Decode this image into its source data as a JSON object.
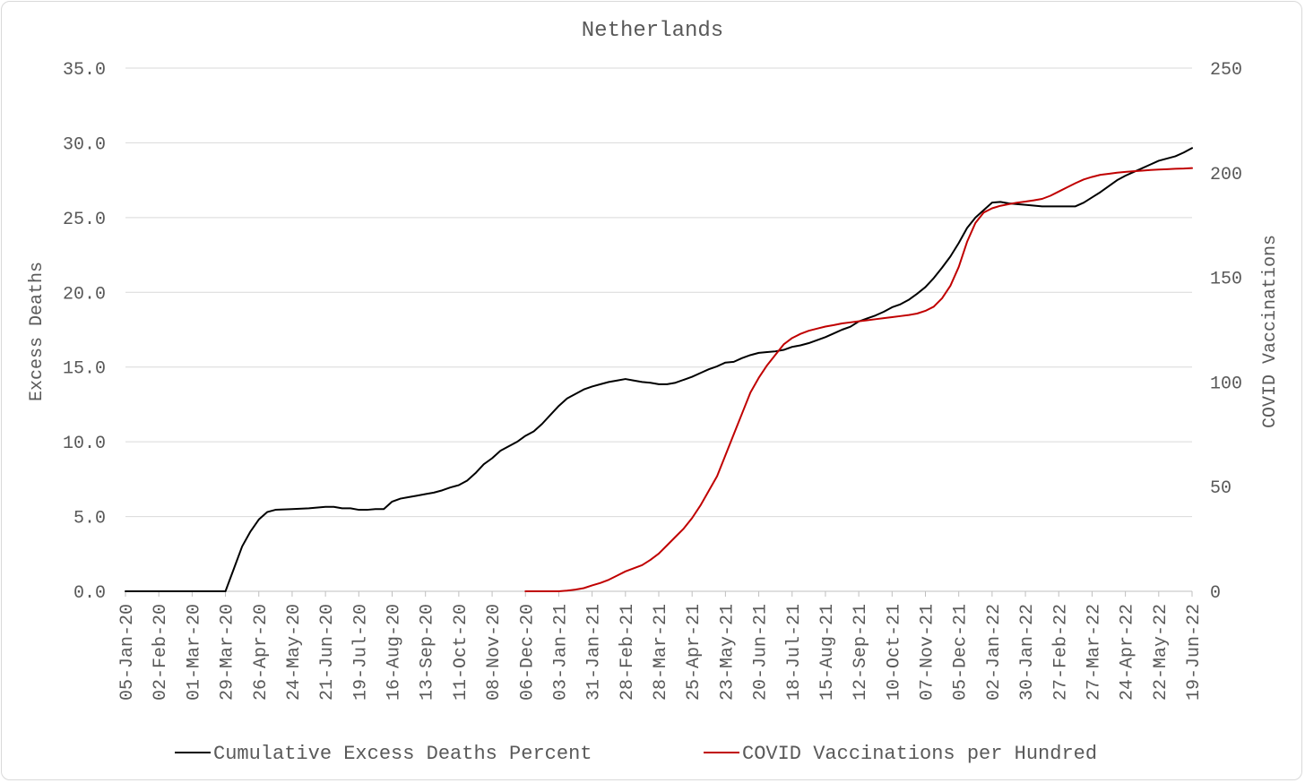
{
  "chart_data": {
    "type": "line",
    "title": "Netherlands",
    "ylabel_left": "Excess Deaths",
    "ylabel_right": "COVID Vaccinations",
    "ylim_left": [
      0,
      35
    ],
    "ylim_right": [
      0,
      250
    ],
    "left_ticks": [
      "0.0",
      "5.0",
      "10.0",
      "15.0",
      "20.0",
      "25.0",
      "30.0",
      "35.0"
    ],
    "right_ticks": [
      "0",
      "50",
      "100",
      "150",
      "200",
      "250"
    ],
    "grid": true,
    "legend_position": "bottom",
    "x_start": "2020-01-05",
    "x_end": "2022-06-19",
    "x_tick_labels": [
      "05-Jan-20",
      "02-Feb-20",
      "01-Mar-20",
      "29-Mar-20",
      "26-Apr-20",
      "24-May-20",
      "21-Jun-20",
      "19-Jul-20",
      "16-Aug-20",
      "13-Sep-20",
      "11-Oct-20",
      "08-Nov-20",
      "06-Dec-20",
      "03-Jan-21",
      "31-Jan-21",
      "28-Feb-21",
      "28-Mar-21",
      "25-Apr-21",
      "23-May-21",
      "20-Jun-21",
      "18-Jul-21",
      "15-Aug-21",
      "12-Sep-21",
      "10-Oct-21",
      "07-Nov-21",
      "05-Dec-21",
      "02-Jan-22",
      "30-Jan-22",
      "27-Feb-22",
      "27-Mar-22",
      "24-Apr-22",
      "22-May-22",
      "19-Jun-22"
    ],
    "series": [
      {
        "name": "Cumulative Excess Deaths Percent",
        "color": "#000000",
        "axis": "left",
        "points": [
          [
            "2020-01-05",
            0.0
          ],
          [
            "2020-01-12",
            0.0
          ],
          [
            "2020-02-02",
            0.0
          ],
          [
            "2020-03-01",
            0.0
          ],
          [
            "2020-03-22",
            0.0
          ],
          [
            "2020-03-29",
            0.0
          ],
          [
            "2020-04-05",
            1.5
          ],
          [
            "2020-04-12",
            3.0
          ],
          [
            "2020-04-19",
            4.0
          ],
          [
            "2020-04-26",
            4.8
          ],
          [
            "2020-05-03",
            5.3
          ],
          [
            "2020-05-10",
            5.45
          ],
          [
            "2020-05-24",
            5.5
          ],
          [
            "2020-06-07",
            5.55
          ],
          [
            "2020-06-21",
            5.65
          ],
          [
            "2020-06-28",
            5.65
          ],
          [
            "2020-07-05",
            5.55
          ],
          [
            "2020-07-12",
            5.55
          ],
          [
            "2020-07-19",
            5.45
          ],
          [
            "2020-07-26",
            5.45
          ],
          [
            "2020-08-02",
            5.5
          ],
          [
            "2020-08-09",
            5.5
          ],
          [
            "2020-08-16",
            6.0
          ],
          [
            "2020-08-23",
            6.2
          ],
          [
            "2020-08-30",
            6.3
          ],
          [
            "2020-09-06",
            6.4
          ],
          [
            "2020-09-13",
            6.5
          ],
          [
            "2020-09-20",
            6.6
          ],
          [
            "2020-09-27",
            6.75
          ],
          [
            "2020-10-04",
            6.95
          ],
          [
            "2020-10-11",
            7.1
          ],
          [
            "2020-10-18",
            7.4
          ],
          [
            "2020-10-25",
            7.9
          ],
          [
            "2020-11-01",
            8.5
          ],
          [
            "2020-11-08",
            8.9
          ],
          [
            "2020-11-15",
            9.4
          ],
          [
            "2020-11-22",
            9.7
          ],
          [
            "2020-11-29",
            10.0
          ],
          [
            "2020-12-06",
            10.4
          ],
          [
            "2020-12-13",
            10.7
          ],
          [
            "2020-12-20",
            11.2
          ],
          [
            "2020-12-27",
            11.8
          ],
          [
            "2021-01-03",
            12.4
          ],
          [
            "2021-01-10",
            12.9
          ],
          [
            "2021-01-17",
            13.2
          ],
          [
            "2021-01-24",
            13.5
          ],
          [
            "2021-01-31",
            13.7
          ],
          [
            "2021-02-07",
            13.85
          ],
          [
            "2021-02-14",
            14.0
          ],
          [
            "2021-02-21",
            14.1
          ],
          [
            "2021-02-28",
            14.2
          ],
          [
            "2021-03-07",
            14.1
          ],
          [
            "2021-03-14",
            14.0
          ],
          [
            "2021-03-21",
            13.95
          ],
          [
            "2021-03-28",
            13.85
          ],
          [
            "2021-04-04",
            13.85
          ],
          [
            "2021-04-11",
            13.95
          ],
          [
            "2021-04-18",
            14.15
          ],
          [
            "2021-04-25",
            14.35
          ],
          [
            "2021-05-02",
            14.6
          ],
          [
            "2021-05-09",
            14.85
          ],
          [
            "2021-05-16",
            15.05
          ],
          [
            "2021-05-23",
            15.3
          ],
          [
            "2021-05-30",
            15.35
          ],
          [
            "2021-06-06",
            15.6
          ],
          [
            "2021-06-13",
            15.8
          ],
          [
            "2021-06-20",
            15.95
          ],
          [
            "2021-06-27",
            16.0
          ],
          [
            "2021-07-04",
            16.05
          ],
          [
            "2021-07-11",
            16.15
          ],
          [
            "2021-07-18",
            16.35
          ],
          [
            "2021-07-25",
            16.45
          ],
          [
            "2021-08-01",
            16.6
          ],
          [
            "2021-08-08",
            16.8
          ],
          [
            "2021-08-15",
            17.0
          ],
          [
            "2021-08-22",
            17.25
          ],
          [
            "2021-08-29",
            17.5
          ],
          [
            "2021-09-05",
            17.7
          ],
          [
            "2021-09-12",
            18.05
          ],
          [
            "2021-09-19",
            18.25
          ],
          [
            "2021-09-26",
            18.45
          ],
          [
            "2021-10-03",
            18.7
          ],
          [
            "2021-10-10",
            19.0
          ],
          [
            "2021-10-17",
            19.2
          ],
          [
            "2021-10-24",
            19.5
          ],
          [
            "2021-10-31",
            19.9
          ],
          [
            "2021-11-07",
            20.35
          ],
          [
            "2021-11-14",
            20.95
          ],
          [
            "2021-11-21",
            21.65
          ],
          [
            "2021-11-28",
            22.4
          ],
          [
            "2021-12-05",
            23.3
          ],
          [
            "2021-12-12",
            24.3
          ],
          [
            "2021-12-19",
            25.0
          ],
          [
            "2021-12-26",
            25.5
          ],
          [
            "2022-01-02",
            26.0
          ],
          [
            "2022-01-09",
            26.05
          ],
          [
            "2022-01-16",
            25.95
          ],
          [
            "2022-01-23",
            25.9
          ],
          [
            "2022-01-30",
            25.85
          ],
          [
            "2022-02-06",
            25.8
          ],
          [
            "2022-02-13",
            25.75
          ],
          [
            "2022-02-20",
            25.75
          ],
          [
            "2022-02-27",
            25.75
          ],
          [
            "2022-03-06",
            25.75
          ],
          [
            "2022-03-13",
            25.75
          ],
          [
            "2022-03-20",
            26.0
          ],
          [
            "2022-03-27",
            26.35
          ],
          [
            "2022-04-03",
            26.7
          ],
          [
            "2022-04-10",
            27.1
          ],
          [
            "2022-04-17",
            27.5
          ],
          [
            "2022-04-24",
            27.8
          ],
          [
            "2022-05-01",
            28.05
          ],
          [
            "2022-05-08",
            28.3
          ],
          [
            "2022-05-15",
            28.55
          ],
          [
            "2022-05-22",
            28.8
          ],
          [
            "2022-05-29",
            28.95
          ],
          [
            "2022-06-05",
            29.1
          ],
          [
            "2022-06-12",
            29.35
          ],
          [
            "2022-06-19",
            29.65
          ]
        ]
      },
      {
        "name": "COVID Vaccinations per Hundred",
        "color": "#c00000",
        "axis": "right",
        "points": [
          [
            "2020-12-06",
            0
          ],
          [
            "2020-12-13",
            0
          ],
          [
            "2020-12-20",
            0
          ],
          [
            "2020-12-27",
            0
          ],
          [
            "2021-01-03",
            0
          ],
          [
            "2021-01-10",
            0.3
          ],
          [
            "2021-01-17",
            0.8
          ],
          [
            "2021-01-24",
            1.5
          ],
          [
            "2021-01-31",
            2.8
          ],
          [
            "2021-02-07",
            4.0
          ],
          [
            "2021-02-14",
            5.5
          ],
          [
            "2021-02-21",
            7.5
          ],
          [
            "2021-02-28",
            9.5
          ],
          [
            "2021-03-07",
            11.0
          ],
          [
            "2021-03-14",
            12.5
          ],
          [
            "2021-03-21",
            15.0
          ],
          [
            "2021-03-28",
            18.0
          ],
          [
            "2021-04-04",
            22.0
          ],
          [
            "2021-04-11",
            26.0
          ],
          [
            "2021-04-18",
            30.0
          ],
          [
            "2021-04-25",
            35.0
          ],
          [
            "2021-05-02",
            41.0
          ],
          [
            "2021-05-09",
            48.0
          ],
          [
            "2021-05-16",
            55.0
          ],
          [
            "2021-05-23",
            65.0
          ],
          [
            "2021-05-30",
            75.0
          ],
          [
            "2021-06-06",
            85.0
          ],
          [
            "2021-06-13",
            95.0
          ],
          [
            "2021-06-20",
            102.0
          ],
          [
            "2021-06-27",
            108.0
          ],
          [
            "2021-07-04",
            113.0
          ],
          [
            "2021-07-11",
            118.0
          ],
          [
            "2021-07-18",
            121.0
          ],
          [
            "2021-07-25",
            123.0
          ],
          [
            "2021-08-01",
            124.5
          ],
          [
            "2021-08-08",
            125.5
          ],
          [
            "2021-08-15",
            126.5
          ],
          [
            "2021-08-22",
            127.2
          ],
          [
            "2021-08-29",
            128.0
          ],
          [
            "2021-09-05",
            128.5
          ],
          [
            "2021-09-12",
            129.0
          ],
          [
            "2021-09-19",
            129.5
          ],
          [
            "2021-09-26",
            130.0
          ],
          [
            "2021-10-03",
            130.5
          ],
          [
            "2021-10-10",
            131.0
          ],
          [
            "2021-10-17",
            131.5
          ],
          [
            "2021-10-24",
            132.0
          ],
          [
            "2021-10-31",
            132.7
          ],
          [
            "2021-11-07",
            134.0
          ],
          [
            "2021-11-14",
            136.0
          ],
          [
            "2021-11-21",
            140.0
          ],
          [
            "2021-11-28",
            146.0
          ],
          [
            "2021-12-05",
            155.0
          ],
          [
            "2021-12-12",
            167.0
          ],
          [
            "2021-12-19",
            176.0
          ],
          [
            "2021-12-26",
            181.0
          ],
          [
            "2022-01-02",
            183.0
          ],
          [
            "2022-01-09",
            184.2
          ],
          [
            "2022-01-16",
            185.0
          ],
          [
            "2022-01-23",
            185.7
          ],
          [
            "2022-01-30",
            186.2
          ],
          [
            "2022-02-06",
            186.8
          ],
          [
            "2022-02-13",
            187.5
          ],
          [
            "2022-02-20",
            189.0
          ],
          [
            "2022-02-27",
            191.0
          ],
          [
            "2022-03-06",
            193.0
          ],
          [
            "2022-03-13",
            195.0
          ],
          [
            "2022-03-20",
            196.8
          ],
          [
            "2022-03-27",
            198.0
          ],
          [
            "2022-04-03",
            199.0
          ],
          [
            "2022-04-10",
            199.5
          ],
          [
            "2022-04-17",
            200.0
          ],
          [
            "2022-04-24",
            200.4
          ],
          [
            "2022-05-01",
            200.7
          ],
          [
            "2022-05-08",
            201.0
          ],
          [
            "2022-05-15",
            201.3
          ],
          [
            "2022-05-22",
            201.5
          ],
          [
            "2022-05-29",
            201.7
          ],
          [
            "2022-06-05",
            201.9
          ],
          [
            "2022-06-12",
            202.0
          ],
          [
            "2022-06-19",
            202.2
          ]
        ]
      }
    ]
  }
}
